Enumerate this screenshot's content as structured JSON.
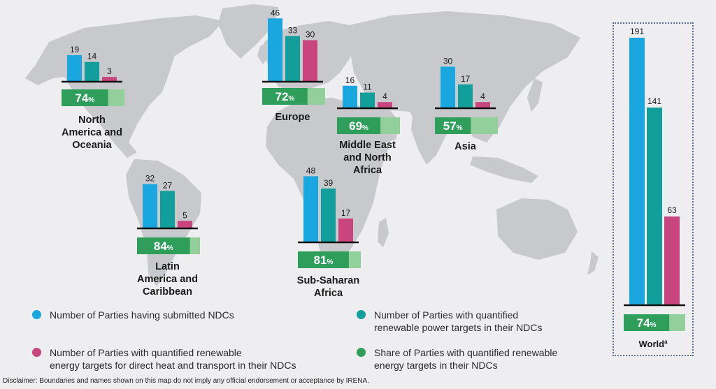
{
  "colors": {
    "submitted": "#1aa7e0",
    "power": "#129e9a",
    "heat_transport": "#c8457d",
    "share_dark": "#2e9e5a",
    "share_light": "#93cf9a"
  },
  "legend": {
    "submitted": "Number of Parties having submitted NDCs",
    "power_line1": "Number of Parties with quantified",
    "power_line2": "renewable power targets in their NDCs",
    "heat_line1": "Number of Parties with quantified renewable",
    "heat_line2": "energy targets for direct heat and transport in their NDCs",
    "share_line1": "Share of Parties with quantified renewable",
    "share_line2": "energy targets in their NDCs"
  },
  "disclaimer": "Disclaimer: Boundaries and names shown on this map do not imply any official endorsement or acceptance by IRENA.",
  "chart_data": {
    "type": "bar",
    "series_names": [
      "Number of Parties having submitted NDCs",
      "Number of Parties with quantified renewable power targets in their NDCs",
      "Number of Parties with quantified renewable energy targets for direct heat and transport in their NDCs"
    ],
    "share_series_name": "Share of Parties with quantified renewable energy targets in their NDCs",
    "regions": [
      {
        "key": "na",
        "label_lines": [
          "North",
          "America and",
          "Oceania"
        ],
        "values": [
          19,
          14,
          3
        ],
        "share": 74
      },
      {
        "key": "eu",
        "label_lines": [
          "Europe"
        ],
        "values": [
          46,
          33,
          30
        ],
        "share": 72
      },
      {
        "key": "mena",
        "label_lines": [
          "Middle East",
          "and North",
          "Africa"
        ],
        "values": [
          16,
          11,
          4
        ],
        "share": 69
      },
      {
        "key": "asia",
        "label_lines": [
          "Asia"
        ],
        "values": [
          30,
          17,
          4
        ],
        "share": 57
      },
      {
        "key": "lac",
        "label_lines": [
          "Latin",
          "America and",
          "Caribbean"
        ],
        "values": [
          32,
          27,
          5
        ],
        "share": 84
      },
      {
        "key": "ssa",
        "label_lines": [
          "Sub-Saharan",
          "Africa"
        ],
        "values": [
          48,
          39,
          17
        ],
        "share": 81
      }
    ],
    "world": {
      "label": "World",
      "label_sup": "a",
      "values": [
        191,
        141,
        63
      ],
      "share": 74
    },
    "share_unit": "%"
  }
}
